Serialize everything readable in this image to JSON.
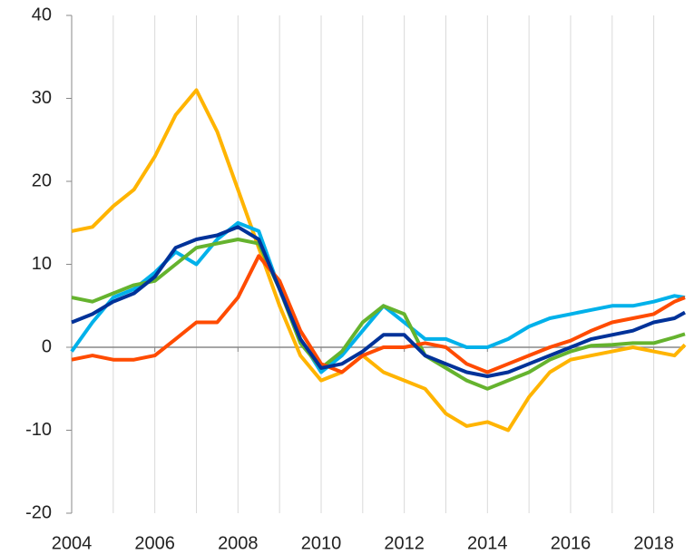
{
  "chart_data": {
    "type": "line",
    "x": [
      2004,
      2004.5,
      2005,
      2005.5,
      2006,
      2006.5,
      2007,
      2007.5,
      2008,
      2008.5,
      2009,
      2009.5,
      2010,
      2010.5,
      2011,
      2011.5,
      2012,
      2012.5,
      2013,
      2013.5,
      2014,
      2014.5,
      2015,
      2015.5,
      2016,
      2016.5,
      2017,
      2017.5,
      2018,
      2018.5,
      2018.75
    ],
    "series": [
      {
        "color": "#ffb400",
        "values": [
          14,
          14.5,
          17,
          19,
          23,
          28,
          31,
          26,
          19,
          12,
          5,
          -1,
          -4,
          -3,
          -1,
          -3,
          -4,
          -5,
          -8,
          -9.5,
          -9,
          -10,
          -6,
          -3,
          -1.5,
          -1,
          -0.5,
          0,
          -0.5,
          -1,
          0.3
        ]
      },
      {
        "color": "#00b1ea",
        "values": [
          -0.5,
          3,
          6,
          7,
          9,
          11.5,
          10,
          13,
          15,
          14,
          7,
          1,
          -3,
          -1,
          2,
          5,
          3,
          1,
          1,
          0,
          0,
          1,
          2.5,
          3.5,
          4,
          4.5,
          5,
          5,
          5.5,
          6.2,
          6
        ]
      },
      {
        "color": "#65b32e",
        "values": [
          6,
          5.5,
          6.5,
          7.5,
          8,
          10,
          12,
          12.5,
          13,
          12.5,
          7,
          0.5,
          -2.5,
          -0.5,
          3,
          5,
          4,
          -1,
          -2.5,
          -4,
          -5,
          -4,
          -3,
          -1.5,
          -0.5,
          0.2,
          0.3,
          0.5,
          0.5,
          1.2,
          1.6
        ]
      },
      {
        "color": "#ff4b00",
        "values": [
          -1.5,
          -1,
          -1.5,
          -1.5,
          -1,
          1,
          3,
          3,
          6,
          11,
          8,
          2,
          -2,
          -3,
          -1,
          0,
          0,
          0.5,
          0,
          -2,
          -3,
          -2,
          -1,
          0,
          0.8,
          2,
          3,
          3.5,
          4,
          5.5,
          6
        ]
      },
      {
        "color": "#003299",
        "values": [
          3,
          4,
          5.5,
          6.5,
          8.5,
          12,
          13,
          13.5,
          14.5,
          13,
          7,
          1,
          -2.5,
          -2,
          -0.5,
          1.5,
          1.5,
          -1,
          -2,
          -3,
          -3.5,
          -3,
          -2,
          -1,
          0,
          1,
          1.5,
          2,
          3,
          3.5,
          4.2
        ]
      }
    ],
    "xlim": [
      2004,
      2018.75
    ],
    "xticks": [
      2004,
      2006,
      2008,
      2010,
      2012,
      2014,
      2016,
      2018
    ],
    "x_minor_ticks": [
      2005,
      2007,
      2009,
      2011,
      2013,
      2015,
      2017
    ],
    "ylim": [
      -20,
      40
    ],
    "yticks": [
      -20,
      -10,
      0,
      10,
      20,
      30,
      40
    ],
    "grid": true
  }
}
